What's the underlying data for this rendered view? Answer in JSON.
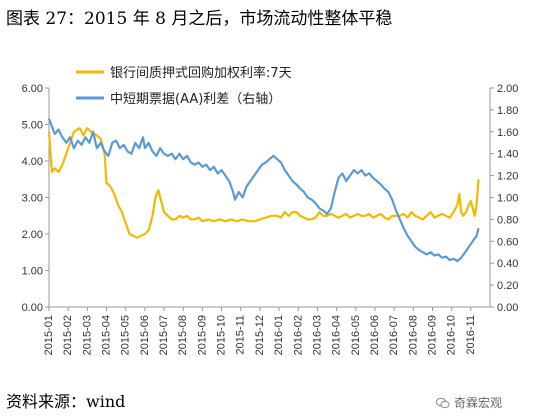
{
  "figure": {
    "title": "图表 27：2015 年 8 月之后，市场流动性整体平稳",
    "source": "资料来源：wind",
    "watermark": "奇霖宏观"
  },
  "colors": {
    "series1": "#f5b800",
    "series2": "#5b9bd5",
    "axis": "#999999"
  },
  "chart_data": {
    "type": "line",
    "title": "",
    "legend_position": "top",
    "grid": false,
    "x": [
      "2015-01",
      "2015-02",
      "2015-03",
      "2015-04",
      "2015-05",
      "2015-06",
      "2015-07",
      "2015-08",
      "2015-09",
      "2015-10",
      "2015-11",
      "2015-12",
      "2016-01",
      "2016-02",
      "2016-03",
      "2016-04",
      "2016-05",
      "2016-06",
      "2016-07",
      "2016-08",
      "2016-09",
      "2016-10",
      "2016-11"
    ],
    "x_tick_labels": [
      "2015-01",
      "2015-02",
      "2015-03",
      "2015-04",
      "2015-05",
      "2015-06",
      "2015-07",
      "2015-08",
      "2015-09",
      "2015-10",
      "2015-11",
      "2015-12",
      "2016-01",
      "2016-02",
      "2016-03",
      "2016-04",
      "2016-05",
      "2016-06",
      "2016-07",
      "2016-08",
      "2016-09",
      "2016-10",
      "2016-11"
    ],
    "y_left": {
      "lim": [
        0,
        6
      ],
      "ticks": [
        "0.00",
        "1.00",
        "2.00",
        "3.00",
        "4.00",
        "5.00",
        "6.00"
      ]
    },
    "y_right": {
      "lim": [
        0,
        2
      ],
      "ticks": [
        "0.00",
        "0.20",
        "0.40",
        "0.60",
        "0.80",
        "1.00",
        "1.20",
        "1.40",
        "1.60",
        "1.80",
        "2.00"
      ]
    },
    "series": [
      {
        "name": "银行间质押式回购加权利率:7天",
        "axis": "left",
        "points": [
          [
            0,
            4.8
          ],
          [
            0.15,
            3.7
          ],
          [
            0.3,
            3.8
          ],
          [
            0.5,
            3.7
          ],
          [
            0.7,
            3.9
          ],
          [
            0.9,
            4.2
          ],
          [
            1.1,
            4.5
          ],
          [
            1.3,
            4.8
          ],
          [
            1.6,
            4.9
          ],
          [
            1.8,
            4.7
          ],
          [
            2.0,
            4.9
          ],
          [
            2.2,
            4.8
          ],
          [
            2.5,
            4.7
          ],
          [
            2.7,
            4.6
          ],
          [
            2.9,
            4.2
          ],
          [
            3.0,
            3.4
          ],
          [
            3.2,
            3.3
          ],
          [
            3.4,
            3.1
          ],
          [
            3.6,
            2.8
          ],
          [
            3.8,
            2.6
          ],
          [
            4.0,
            2.3
          ],
          [
            4.2,
            2.0
          ],
          [
            4.4,
            1.95
          ],
          [
            4.6,
            1.9
          ],
          [
            4.8,
            1.95
          ],
          [
            5.0,
            2.0
          ],
          [
            5.2,
            2.1
          ],
          [
            5.4,
            2.5
          ],
          [
            5.55,
            3.0
          ],
          [
            5.7,
            3.2
          ],
          [
            5.85,
            2.9
          ],
          [
            6.0,
            2.6
          ],
          [
            6.2,
            2.5
          ],
          [
            6.4,
            2.4
          ],
          [
            6.6,
            2.4
          ],
          [
            6.8,
            2.5
          ],
          [
            7.0,
            2.45
          ],
          [
            7.2,
            2.5
          ],
          [
            7.4,
            2.4
          ],
          [
            7.6,
            2.4
          ],
          [
            7.8,
            2.45
          ],
          [
            8.0,
            2.35
          ],
          [
            8.3,
            2.4
          ],
          [
            8.6,
            2.35
          ],
          [
            8.9,
            2.4
          ],
          [
            9.2,
            2.35
          ],
          [
            9.5,
            2.4
          ],
          [
            9.8,
            2.35
          ],
          [
            10.1,
            2.4
          ],
          [
            10.4,
            2.35
          ],
          [
            10.7,
            2.35
          ],
          [
            11.0,
            2.4
          ],
          [
            11.3,
            2.45
          ],
          [
            11.6,
            2.5
          ],
          [
            11.9,
            2.5
          ],
          [
            12.1,
            2.45
          ],
          [
            12.3,
            2.6
          ],
          [
            12.5,
            2.5
          ],
          [
            12.7,
            2.6
          ],
          [
            12.9,
            2.6
          ],
          [
            13.1,
            2.5
          ],
          [
            13.3,
            2.45
          ],
          [
            13.5,
            2.4
          ],
          [
            13.7,
            2.4
          ],
          [
            13.9,
            2.45
          ],
          [
            14.1,
            2.6
          ],
          [
            14.3,
            2.5
          ],
          [
            14.5,
            2.5
          ],
          [
            14.7,
            2.55
          ],
          [
            14.9,
            2.5
          ],
          [
            15.1,
            2.45
          ],
          [
            15.3,
            2.5
          ],
          [
            15.5,
            2.55
          ],
          [
            15.7,
            2.45
          ],
          [
            15.9,
            2.5
          ],
          [
            16.1,
            2.55
          ],
          [
            16.3,
            2.5
          ],
          [
            16.5,
            2.5
          ],
          [
            16.7,
            2.55
          ],
          [
            16.9,
            2.45
          ],
          [
            17.1,
            2.5
          ],
          [
            17.3,
            2.55
          ],
          [
            17.5,
            2.45
          ],
          [
            17.7,
            2.4
          ],
          [
            17.9,
            2.5
          ],
          [
            18.1,
            2.5
          ],
          [
            18.3,
            2.5
          ],
          [
            18.5,
            2.55
          ],
          [
            18.7,
            2.45
          ],
          [
            18.9,
            2.6
          ],
          [
            19.1,
            2.5
          ],
          [
            19.3,
            2.45
          ],
          [
            19.5,
            2.4
          ],
          [
            19.7,
            2.5
          ],
          [
            19.9,
            2.6
          ],
          [
            20.1,
            2.45
          ],
          [
            20.3,
            2.5
          ],
          [
            20.5,
            2.55
          ],
          [
            20.7,
            2.5
          ],
          [
            20.9,
            2.45
          ],
          [
            21.1,
            2.6
          ],
          [
            21.3,
            2.8
          ],
          [
            21.4,
            3.1
          ],
          [
            21.5,
            2.6
          ],
          [
            21.6,
            2.5
          ],
          [
            21.75,
            2.6
          ],
          [
            21.9,
            2.8
          ],
          [
            22.0,
            2.9
          ],
          [
            22.1,
            2.7
          ],
          [
            22.2,
            2.5
          ],
          [
            22.3,
            2.8
          ],
          [
            22.4,
            3.5
          ]
        ]
      },
      {
        "name": "中短期票据(AA)利差（右轴）",
        "axis": "right",
        "points": [
          [
            0,
            1.72
          ],
          [
            0.15,
            1.65
          ],
          [
            0.3,
            1.58
          ],
          [
            0.5,
            1.62
          ],
          [
            0.7,
            1.55
          ],
          [
            0.9,
            1.5
          ],
          [
            1.1,
            1.55
          ],
          [
            1.3,
            1.45
          ],
          [
            1.5,
            1.52
          ],
          [
            1.7,
            1.48
          ],
          [
            1.9,
            1.55
          ],
          [
            2.1,
            1.5
          ],
          [
            2.3,
            1.6
          ],
          [
            2.5,
            1.45
          ],
          [
            2.7,
            1.5
          ],
          [
            2.9,
            1.42
          ],
          [
            3.1,
            1.38
          ],
          [
            3.3,
            1.5
          ],
          [
            3.5,
            1.52
          ],
          [
            3.7,
            1.45
          ],
          [
            3.9,
            1.48
          ],
          [
            4.1,
            1.42
          ],
          [
            4.3,
            1.4
          ],
          [
            4.5,
            1.5
          ],
          [
            4.7,
            1.45
          ],
          [
            4.9,
            1.55
          ],
          [
            5.0,
            1.45
          ],
          [
            5.2,
            1.5
          ],
          [
            5.4,
            1.42
          ],
          [
            5.6,
            1.38
          ],
          [
            5.8,
            1.45
          ],
          [
            6.0,
            1.4
          ],
          [
            6.2,
            1.38
          ],
          [
            6.4,
            1.4
          ],
          [
            6.6,
            1.35
          ],
          [
            6.8,
            1.4
          ],
          [
            7.0,
            1.35
          ],
          [
            7.2,
            1.38
          ],
          [
            7.4,
            1.32
          ],
          [
            7.6,
            1.3
          ],
          [
            7.8,
            1.32
          ],
          [
            8.0,
            1.28
          ],
          [
            8.2,
            1.3
          ],
          [
            8.4,
            1.25
          ],
          [
            8.6,
            1.28
          ],
          [
            8.8,
            1.22
          ],
          [
            9.0,
            1.25
          ],
          [
            9.2,
            1.2
          ],
          [
            9.4,
            1.15
          ],
          [
            9.6,
            1.05
          ],
          [
            9.7,
            0.98
          ],
          [
            9.9,
            1.05
          ],
          [
            10.1,
            1.0
          ],
          [
            10.3,
            1.1
          ],
          [
            10.5,
            1.15
          ],
          [
            10.7,
            1.2
          ],
          [
            10.9,
            1.25
          ],
          [
            11.1,
            1.3
          ],
          [
            11.3,
            1.32
          ],
          [
            11.5,
            1.35
          ],
          [
            11.7,
            1.38
          ],
          [
            11.9,
            1.35
          ],
          [
            12.1,
            1.32
          ],
          [
            12.3,
            1.25
          ],
          [
            12.5,
            1.2
          ],
          [
            12.7,
            1.15
          ],
          [
            12.9,
            1.12
          ],
          [
            13.1,
            1.08
          ],
          [
            13.3,
            1.05
          ],
          [
            13.5,
            1.0
          ],
          [
            13.7,
            0.98
          ],
          [
            13.9,
            0.95
          ],
          [
            14.1,
            0.9
          ],
          [
            14.3,
            0.88
          ],
          [
            14.5,
            0.85
          ],
          [
            14.7,
            0.9
          ],
          [
            14.9,
            1.05
          ],
          [
            15.1,
            1.18
          ],
          [
            15.3,
            1.22
          ],
          [
            15.5,
            1.15
          ],
          [
            15.7,
            1.2
          ],
          [
            15.9,
            1.25
          ],
          [
            16.1,
            1.22
          ],
          [
            16.3,
            1.25
          ],
          [
            16.5,
            1.2
          ],
          [
            16.7,
            1.22
          ],
          [
            16.9,
            1.18
          ],
          [
            17.1,
            1.15
          ],
          [
            17.3,
            1.12
          ],
          [
            17.5,
            1.08
          ],
          [
            17.7,
            1.05
          ],
          [
            17.9,
            0.98
          ],
          [
            18.1,
            0.88
          ],
          [
            18.3,
            0.8
          ],
          [
            18.5,
            0.72
          ],
          [
            18.7,
            0.65
          ],
          [
            18.9,
            0.6
          ],
          [
            19.1,
            0.55
          ],
          [
            19.3,
            0.52
          ],
          [
            19.5,
            0.5
          ],
          [
            19.7,
            0.48
          ],
          [
            19.9,
            0.5
          ],
          [
            20.1,
            0.47
          ],
          [
            20.3,
            0.48
          ],
          [
            20.5,
            0.45
          ],
          [
            20.7,
            0.46
          ],
          [
            20.9,
            0.43
          ],
          [
            21.1,
            0.44
          ],
          [
            21.3,
            0.42
          ],
          [
            21.5,
            0.45
          ],
          [
            21.7,
            0.5
          ],
          [
            21.9,
            0.55
          ],
          [
            22.1,
            0.6
          ],
          [
            22.3,
            0.65
          ],
          [
            22.4,
            0.72
          ]
        ]
      }
    ]
  }
}
